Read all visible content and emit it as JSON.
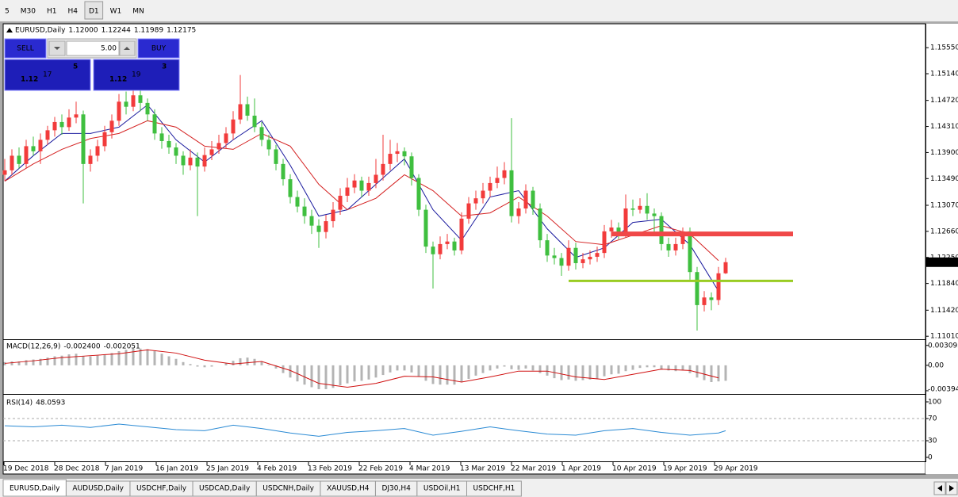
{
  "toolbar": {
    "timeframes": [
      "5",
      "M30",
      "H1",
      "H4",
      "D1",
      "W1",
      "MN"
    ],
    "active": "D1"
  },
  "trade_panel": {
    "sell": "SELL",
    "buy": "BUY",
    "volume": "5.00",
    "bid": [
      "1.12",
      "17",
      "5"
    ],
    "ask": [
      "1.12",
      "19",
      "3"
    ]
  },
  "chart": {
    "type": "candlestick",
    "header": {
      "symbol": "EURUSD,Daily",
      "ohlc": [
        "1.12000",
        "1.12244",
        "1.11989",
        "1.12175"
      ]
    },
    "up_color": "#f23b3b",
    "down_color": "#3fbf3f",
    "ylim": [
      1.10975,
      1.15913
    ],
    "yticks": [
      {
        "value": 1.1555,
        "label": "1.15550"
      },
      {
        "value": 1.1514,
        "label": "1.15140"
      },
      {
        "value": 1.1472,
        "label": "1.14720"
      },
      {
        "value": 1.1431,
        "label": "1.14310"
      },
      {
        "value": 1.139,
        "label": "1.13900"
      },
      {
        "value": 1.1349,
        "label": "1.13490"
      },
      {
        "value": 1.1307,
        "label": "1.13070"
      },
      {
        "value": 1.1266,
        "label": "1.12660"
      },
      {
        "value": 1.1225,
        "label": "1.12250"
      },
      {
        "value": 1.1184,
        "label": "1.11840"
      },
      {
        "value": 1.1142,
        "label": "1.11420"
      },
      {
        "value": 1.1101,
        "label": "1.11010"
      }
    ],
    "candles": [
      [
        1.1355,
        1.138,
        1.1345,
        1.1362
      ],
      [
        1.1362,
        1.1395,
        1.1355,
        1.1385
      ],
      [
        1.1385,
        1.1398,
        1.1365,
        1.1372
      ],
      [
        1.1372,
        1.141,
        1.1366,
        1.14
      ],
      [
        1.14,
        1.1415,
        1.1385,
        1.1392
      ],
      [
        1.1392,
        1.142,
        1.1372,
        1.141
      ],
      [
        1.141,
        1.1432,
        1.1402,
        1.1425
      ],
      [
        1.1425,
        1.1446,
        1.1415,
        1.1438
      ],
      [
        1.1438,
        1.145,
        1.1418,
        1.143
      ],
      [
        1.143,
        1.1458,
        1.1424,
        1.1445
      ],
      [
        1.1445,
        1.147,
        1.1436,
        1.145
      ],
      [
        1.145,
        1.1456,
        1.131,
        1.1372
      ],
      [
        1.1372,
        1.1395,
        1.136,
        1.1385
      ],
      [
        1.1385,
        1.141,
        1.1376,
        1.14
      ],
      [
        1.14,
        1.1432,
        1.1392,
        1.1422
      ],
      [
        1.1422,
        1.145,
        1.1412,
        1.144
      ],
      [
        1.144,
        1.1482,
        1.1432,
        1.147
      ],
      [
        1.147,
        1.1486,
        1.145,
        1.1462
      ],
      [
        1.1462,
        1.149,
        1.1455,
        1.148
      ],
      [
        1.148,
        1.1488,
        1.1455,
        1.1468
      ],
      [
        1.1468,
        1.1475,
        1.144,
        1.145
      ],
      [
        1.145,
        1.1458,
        1.141,
        1.142
      ],
      [
        1.142,
        1.143,
        1.1396,
        1.1408
      ],
      [
        1.1408,
        1.1418,
        1.1388,
        1.1398
      ],
      [
        1.1398,
        1.1405,
        1.1372,
        1.1385
      ],
      [
        1.1385,
        1.1392,
        1.1355,
        1.137
      ],
      [
        1.137,
        1.1395,
        1.1362,
        1.1382
      ],
      [
        1.1382,
        1.139,
        1.129,
        1.1368
      ],
      [
        1.1368,
        1.1398,
        1.136,
        1.1386
      ],
      [
        1.1386,
        1.1408,
        1.1378,
        1.1395
      ],
      [
        1.1395,
        1.1418,
        1.1388,
        1.1405
      ],
      [
        1.1405,
        1.143,
        1.1396,
        1.142
      ],
      [
        1.142,
        1.1455,
        1.141,
        1.1442
      ],
      [
        1.1442,
        1.1512,
        1.1435,
        1.1466
      ],
      [
        1.1466,
        1.1478,
        1.144,
        1.1448
      ],
      [
        1.1448,
        1.1475,
        1.1422,
        1.143
      ],
      [
        1.143,
        1.1438,
        1.14,
        1.141
      ],
      [
        1.141,
        1.1418,
        1.1385,
        1.1395
      ],
      [
        1.1395,
        1.1402,
        1.1362,
        1.1372
      ],
      [
        1.1372,
        1.138,
        1.1338,
        1.1348
      ],
      [
        1.1348,
        1.1356,
        1.131,
        1.132
      ],
      [
        1.132,
        1.133,
        1.1296,
        1.1305
      ],
      [
        1.1305,
        1.1318,
        1.1278,
        1.129
      ],
      [
        1.129,
        1.13,
        1.1262,
        1.1275
      ],
      [
        1.1275,
        1.1285,
        1.124,
        1.1265
      ],
      [
        1.1265,
        1.1292,
        1.1255,
        1.1282
      ],
      [
        1.1282,
        1.1312,
        1.1272,
        1.13
      ],
      [
        1.13,
        1.1334,
        1.1292,
        1.1322
      ],
      [
        1.1322,
        1.135,
        1.1312,
        1.1335
      ],
      [
        1.1335,
        1.1356,
        1.1326,
        1.1346
      ],
      [
        1.1346,
        1.1352,
        1.132,
        1.133
      ],
      [
        1.133,
        1.1352,
        1.1322,
        1.1342
      ],
      [
        1.1342,
        1.138,
        1.1334,
        1.1355
      ],
      [
        1.1355,
        1.1418,
        1.1346,
        1.1372
      ],
      [
        1.1372,
        1.141,
        1.1362,
        1.1388
      ],
      [
        1.1388,
        1.1405,
        1.1375,
        1.1392
      ],
      [
        1.1392,
        1.1398,
        1.137,
        1.1384
      ],
      [
        1.1384,
        1.139,
        1.1338,
        1.135
      ],
      [
        1.135,
        1.1356,
        1.129,
        1.13
      ],
      [
        1.13,
        1.1308,
        1.1232,
        1.1242
      ],
      [
        1.1242,
        1.125,
        1.1176,
        1.123
      ],
      [
        1.123,
        1.1258,
        1.1222,
        1.1246
      ],
      [
        1.1246,
        1.1262,
        1.1238,
        1.125
      ],
      [
        1.125,
        1.1256,
        1.1228,
        1.1236
      ],
      [
        1.1236,
        1.1296,
        1.123,
        1.1286
      ],
      [
        1.1286,
        1.132,
        1.1278,
        1.131
      ],
      [
        1.131,
        1.133,
        1.13,
        1.1318
      ],
      [
        1.1318,
        1.1342,
        1.131,
        1.133
      ],
      [
        1.133,
        1.1352,
        1.132,
        1.1342
      ],
      [
        1.1342,
        1.1368,
        1.1334,
        1.135
      ],
      [
        1.135,
        1.1375,
        1.134,
        1.1362
      ],
      [
        1.1362,
        1.1444,
        1.128,
        1.129
      ],
      [
        1.129,
        1.1312,
        1.1278,
        1.1302
      ],
      [
        1.1302,
        1.134,
        1.1294,
        1.133
      ],
      [
        1.133,
        1.1336,
        1.1292,
        1.1302
      ],
      [
        1.1302,
        1.131,
        1.124,
        1.1252
      ],
      [
        1.1252,
        1.1262,
        1.1218,
        1.1228
      ],
      [
        1.1228,
        1.124,
        1.1214,
        1.1224
      ],
      [
        1.1224,
        1.1232,
        1.1196,
        1.1212
      ],
      [
        1.1212,
        1.1252,
        1.1204,
        1.124
      ],
      [
        1.124,
        1.1248,
        1.1206,
        1.1216
      ],
      [
        1.1216,
        1.1232,
        1.1208,
        1.1222
      ],
      [
        1.1222,
        1.1236,
        1.1214,
        1.1226
      ],
      [
        1.1226,
        1.1242,
        1.1218,
        1.1232
      ],
      [
        1.1232,
        1.1276,
        1.1224,
        1.1266
      ],
      [
        1.1266,
        1.1284,
        1.1256,
        1.1272
      ],
      [
        1.1272,
        1.128,
        1.1254,
        1.1264
      ],
      [
        1.1264,
        1.1324,
        1.1256,
        1.1302
      ],
      [
        1.1302,
        1.1316,
        1.129,
        1.13
      ],
      [
        1.13,
        1.1318,
        1.1294,
        1.1306
      ],
      [
        1.1306,
        1.1326,
        1.1284,
        1.1294
      ],
      [
        1.1294,
        1.1302,
        1.1262,
        1.129
      ],
      [
        1.129,
        1.1296,
        1.1236,
        1.1246
      ],
      [
        1.1246,
        1.1256,
        1.1226,
        1.1236
      ],
      [
        1.1236,
        1.1256,
        1.1228,
        1.1246
      ],
      [
        1.1246,
        1.1272,
        1.1238,
        1.1266
      ],
      [
        1.1266,
        1.1272,
        1.119,
        1.1202
      ],
      [
        1.1202,
        1.121,
        1.111,
        1.115
      ],
      [
        1.115,
        1.1172,
        1.114,
        1.1162
      ],
      [
        1.1162,
        1.117,
        1.1142,
        1.1158
      ],
      [
        1.1158,
        1.121,
        1.115,
        1.12
      ],
      [
        1.12,
        1.12244,
        1.11989,
        1.12175
      ]
    ],
    "moving_averages": {
      "x": [
        0,
        4,
        8,
        12,
        16,
        20,
        24,
        28,
        32,
        36,
        40,
        44,
        48,
        52,
        56,
        60,
        64,
        68,
        72,
        76,
        80,
        84,
        88,
        92,
        96,
        100
      ],
      "series": [
        {
          "color": "#1a1a9e",
          "values": [
            1.1345,
            1.1385,
            1.142,
            1.142,
            1.143,
            1.1465,
            1.141,
            1.1375,
            1.141,
            1.144,
            1.137,
            1.129,
            1.13,
            1.134,
            1.138,
            1.13,
            1.1252,
            1.132,
            1.133,
            1.127,
            1.1225,
            1.124,
            1.128,
            1.1285,
            1.1245,
            1.1172
          ]
        },
        {
          "color": "#d42020",
          "values": [
            1.1345,
            1.1372,
            1.1395,
            1.1412,
            1.142,
            1.144,
            1.143,
            1.14,
            1.1395,
            1.142,
            1.14,
            1.134,
            1.13,
            1.1318,
            1.1355,
            1.133,
            1.129,
            1.1295,
            1.132,
            1.129,
            1.125,
            1.1245,
            1.126,
            1.1275,
            1.1262,
            1.122
          ]
        }
      ]
    },
    "levels": [
      {
        "price": 1.1262,
        "start_bar": 85,
        "color": "#f04848",
        "width": 6
      },
      {
        "price": 1.1188,
        "start_bar": 79,
        "color": "#99cc22",
        "width": 3
      }
    ],
    "dates": [
      "19 Dec 2018",
      "28 Dec 2018",
      "7 Jan 2019",
      "16 Jan 2019",
      "25 Jan 2019",
      "4 Feb 2019",
      "13 Feb 2019",
      "22 Feb 2019",
      "4 Mar 2019",
      "13 Mar 2019",
      "22 Mar 2019",
      "1 Apr 2019",
      "10 Apr 2019",
      "19 Apr 2019",
      "29 Apr 2019"
    ],
    "macd": {
      "label": "MACD(12,26,9)",
      "values_text": [
        "-0.002400",
        "-0.002051"
      ],
      "ylim": [
        -0.0042,
        0.0038
      ],
      "yticks": [
        0.003095,
        {
          "value": 0,
          "label": "0.00"
        },
        -0.003947
      ],
      "hist_color": "#b4b4b4",
      "signal_color": "#d01010",
      "histogram": [
        0.0005,
        0.0006,
        0.0006,
        0.0008,
        0.0009,
        0.001,
        0.0012,
        0.0014,
        0.0015,
        0.0017,
        0.0018,
        0.0014,
        0.0014,
        0.0015,
        0.0017,
        0.0019,
        0.0022,
        0.0024,
        0.0026,
        0.0026,
        0.0025,
        0.0022,
        0.0018,
        0.0014,
        0.001,
        0.0005,
        0.0002,
        -0.0002,
        -0.0003,
        -0.0002,
        0,
        0.0003,
        0.0007,
        0.0011,
        0.0012,
        0.001,
        0.0006,
        0.0001,
        -0.0005,
        -0.0012,
        -0.0019,
        -0.0025,
        -0.003,
        -0.0034,
        -0.0037,
        -0.0037,
        -0.0035,
        -0.0031,
        -0.0028,
        -0.0025,
        -0.0024,
        -0.0022,
        -0.0019,
        -0.0015,
        -0.0011,
        -0.0008,
        -0.0008,
        -0.0011,
        -0.0017,
        -0.0024,
        -0.0029,
        -0.003,
        -0.003,
        -0.003,
        -0.0026,
        -0.0021,
        -0.0016,
        -0.0012,
        -0.0008,
        -0.0005,
        -0.0002,
        -0.0006,
        -0.0007,
        -0.0005,
        -0.0008,
        -0.0012,
        -0.0016,
        -0.002,
        -0.0023,
        -0.0022,
        -0.0024,
        -0.0023,
        -0.0022,
        -0.0021,
        -0.0017,
        -0.0014,
        -0.0013,
        -0.0009,
        -0.0007,
        -0.0004,
        -0.0003,
        -0.0003,
        -0.0006,
        -0.0008,
        -0.0009,
        -0.0008,
        -0.0012,
        -0.0019,
        -0.0023,
        -0.0026,
        -0.0025,
        -0.0024
      ],
      "signal_x": [
        0,
        4,
        8,
        12,
        16,
        20,
        24,
        28,
        32,
        36,
        40,
        44,
        48,
        52,
        56,
        60,
        64,
        68,
        72,
        76,
        80,
        84,
        88,
        92,
        96,
        100
      ],
      "signal": [
        0.0003,
        0.0007,
        0.0012,
        0.0015,
        0.0018,
        0.0024,
        0.0019,
        0.0008,
        0.0002,
        0.0006,
        -0.0008,
        -0.0028,
        -0.0034,
        -0.0028,
        -0.0017,
        -0.0018,
        -0.0026,
        -0.0018,
        -0.0009,
        -0.0009,
        -0.0018,
        -0.0022,
        -0.0014,
        -0.0006,
        -0.0008,
        -0.00195
      ]
    },
    "rsi": {
      "label": "RSI(14)",
      "value_text": "48.0593",
      "ylim": [
        -5.7,
        110
      ],
      "yticks": [
        100,
        70,
        30,
        0
      ],
      "dashed_levels": [
        70,
        30
      ],
      "color": "#2a8ad4",
      "x": [
        0,
        4,
        8,
        12,
        16,
        20,
        24,
        28,
        32,
        36,
        40,
        44,
        48,
        52,
        56,
        60,
        64,
        68,
        72,
        76,
        80,
        84,
        88,
        92,
        96,
        100,
        101
      ],
      "values": [
        57,
        55,
        58,
        54,
        60,
        55,
        50,
        48,
        58,
        52,
        44,
        38,
        45,
        48,
        52,
        40,
        47,
        55,
        48,
        42,
        40,
        48,
        52,
        45,
        40,
        44,
        48.0593
      ]
    }
  },
  "tabs": [
    "EURUSD,Daily",
    "AUDUSD,Daily",
    "USDCHF,Daily",
    "USDCAD,Daily",
    "USDCNH,Daily",
    "XAUUSD,H4",
    "DJ30,H4",
    "USDOil,H1",
    "USDCHF,H1"
  ]
}
